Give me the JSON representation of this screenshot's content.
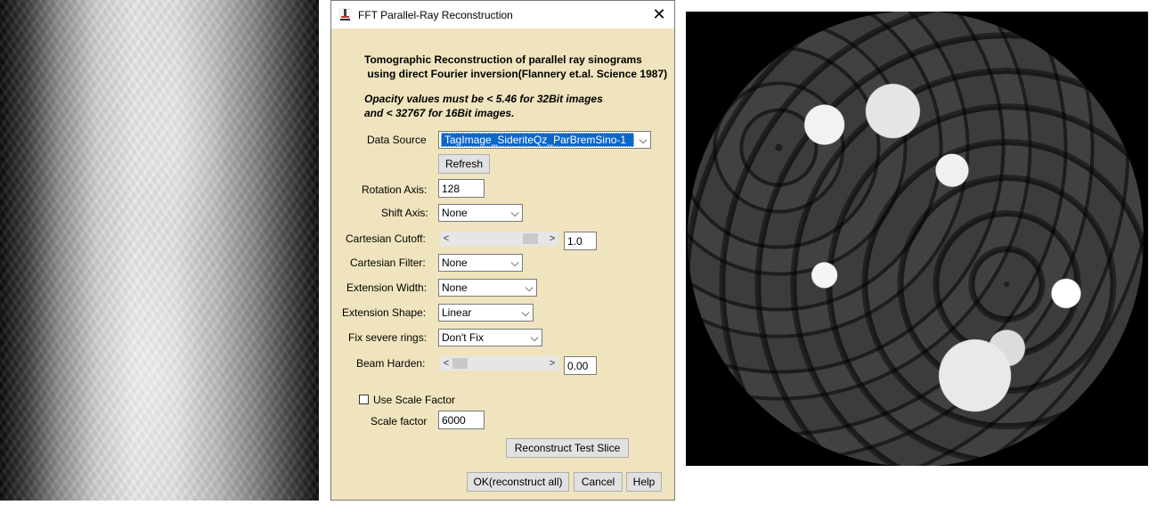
{
  "window": {
    "title": "FFT Parallel-Ray Reconstruction",
    "title_icon": "imagej-microscope-icon",
    "close_glyph": "✕"
  },
  "intro": {
    "line1": "Tomographic Reconstruction of parallel ray sinograms",
    "line2": " using direct Fourier inversion(Flannery et.al. Science 1987)",
    "opacity_line1": "Opacity values must be < 5.46 for 32Bit images",
    "opacity_line2": "and < 32767 for 16Bit images."
  },
  "fields": {
    "data_source_label": "Data Source",
    "data_source_value": "TagImage_SideriteQz_ParBremSino-1",
    "refresh_label": "Refresh",
    "rotation_axis_label": "Rotation Axis:",
    "rotation_axis_value": "128",
    "shift_axis_label": "Shift Axis:",
    "shift_axis_value": "None",
    "cartesian_cutoff_label": "Cartesian Cutoff:",
    "cartesian_cutoff_value": "1.0",
    "cartesian_cutoff_level": 0.9,
    "cartesian_filter_label": "Cartesian Filter:",
    "cartesian_filter_value": "None",
    "extension_width_label": "Extension Width:",
    "extension_width_value": "None",
    "extension_shape_label": "Extension Shape:",
    "extension_shape_value": "Linear",
    "fix_rings_label": "Fix severe rings:",
    "fix_rings_value": "Don't Fix",
    "beam_harden_label": "Beam Harden:",
    "beam_harden_value": "0.00",
    "beam_harden_level": 0.0,
    "use_scale_factor_label": "Use Scale Factor",
    "use_scale_factor_checked": false,
    "scale_factor_label": "Scale factor",
    "scale_factor_value": "6000"
  },
  "buttons": {
    "reconstruct_test": "Reconstruct Test Slice",
    "ok": "OK(reconstruct all)",
    "cancel": "Cancel",
    "help": "Help"
  },
  "glyphs": {
    "dropdown_arrow": "⌵",
    "scroll_left": "<",
    "scroll_right": ">"
  }
}
